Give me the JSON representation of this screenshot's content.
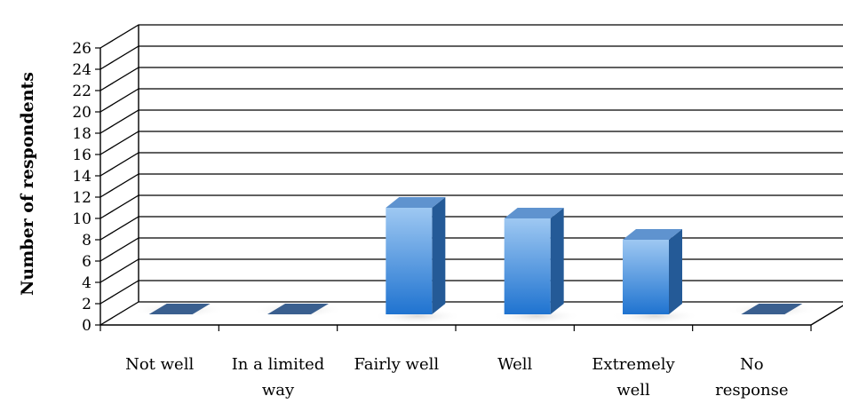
{
  "chart_data": {
    "type": "bar",
    "style": "3d-column",
    "title": "",
    "xlabel": "",
    "ylabel": "Number of respondents",
    "ylim": [
      0,
      26
    ],
    "yticks": [
      "0",
      "2",
      "4",
      "6",
      "8",
      "10",
      "12",
      "14",
      "16",
      "18",
      "20",
      "22",
      "24",
      "26"
    ],
    "categories": [
      [
        "Not well"
      ],
      [
        "In a limited",
        "way"
      ],
      [
        "Fairly well"
      ],
      [
        "Well"
      ],
      [
        "Extremely",
        "well"
      ],
      [
        "No",
        "response"
      ]
    ],
    "values": [
      0,
      0,
      10,
      9,
      7,
      0
    ],
    "grid": true,
    "legend": "none",
    "colors": {
      "bar_front_top": "#9ec8f2",
      "bar_front_bottom": "#1f73d0",
      "bar_side": "#245a97",
      "bar_top": "#5f93cf",
      "zero_tile": "#3a5f8f",
      "gridline": "#000000"
    }
  }
}
